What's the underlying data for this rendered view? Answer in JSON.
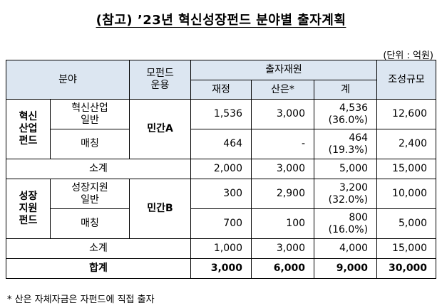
{
  "title": "(참고) ’23년 혁신성장펀드 분야별 출자계획",
  "unit": "(단위 : 억원)",
  "header": {
    "field": "분야",
    "mofund_line1": "모펀드",
    "mofund_line2": "운용",
    "funding": "출자재원",
    "composition": "조성규모",
    "finance": "재정",
    "industry": "산은*",
    "total": "계"
  },
  "group1": {
    "name_l1": "혁신",
    "name_l2": "산업",
    "name_l3": "펀드",
    "mofund": "민간A",
    "row1": {
      "sub_l1": "혁신산업",
      "sub_l2": "일반",
      "finance": "1,536",
      "industry": "3,000",
      "total": "4,536",
      "pct": "(36.0%)",
      "comp": "12,600"
    },
    "row2": {
      "sub": "매칭",
      "finance": "464",
      "industry": "-",
      "total": "464",
      "pct": "(19.3%)",
      "comp": "2,400"
    },
    "subtotal": {
      "label": "소계",
      "finance": "2,000",
      "industry": "3,000",
      "total": "5,000",
      "comp": "15,000"
    }
  },
  "group2": {
    "name_l1": "성장",
    "name_l2": "지원",
    "name_l3": "펀드",
    "mofund": "민간B",
    "row1": {
      "sub_l1": "성장지원",
      "sub_l2": "일반",
      "finance": "300",
      "industry": "2,900",
      "total": "3,200",
      "pct": "(32.0%)",
      "comp": "10,000"
    },
    "row2": {
      "sub": "매칭",
      "finance": "700",
      "industry": "100",
      "total": "800",
      "pct": "(16.0%)",
      "comp": "5,000"
    },
    "subtotal": {
      "label": "소계",
      "finance": "1,000",
      "industry": "3,000",
      "total": "4,000",
      "comp": "15,000"
    }
  },
  "grand_total": {
    "label": "합계",
    "finance": "3,000",
    "industry": "6,000",
    "total": "9,000",
    "comp": "30,000"
  },
  "note": "* 산은 자체자금은 자펀드에 직접 출자"
}
